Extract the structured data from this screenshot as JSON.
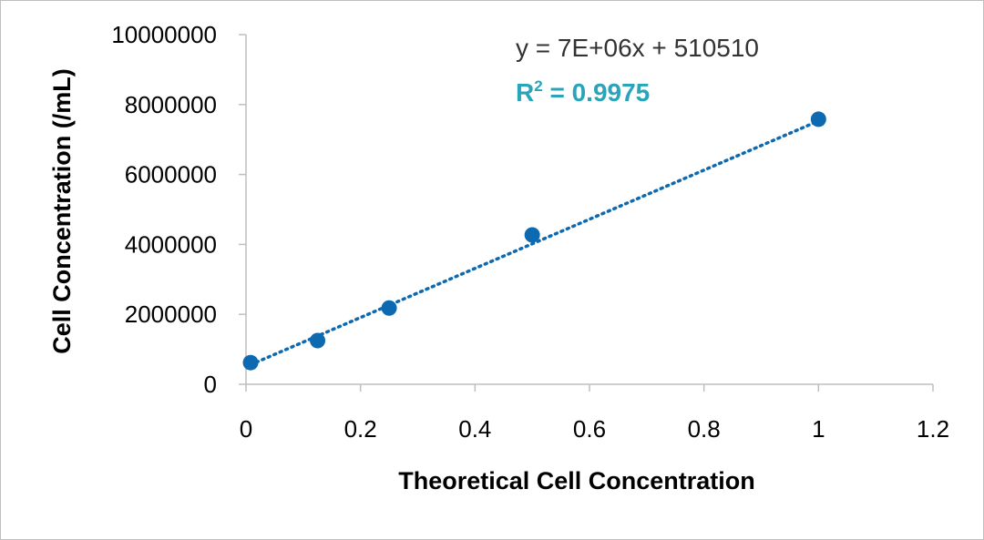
{
  "chart_data": {
    "type": "scatter",
    "xlabel": "Theoretical Cell Concentration",
    "ylabel": "Cell Concentration (/mL)",
    "xlim": [
      0,
      1.2
    ],
    "ylim": [
      0,
      10000000
    ],
    "x_ticks": [
      0,
      0.2,
      0.4,
      0.6,
      0.8,
      1,
      1.2
    ],
    "x_tick_labels": [
      "0",
      "0.2",
      "0.4",
      "0.6",
      "0.8",
      "1",
      "1.2"
    ],
    "y_ticks": [
      0,
      2000000,
      4000000,
      6000000,
      8000000,
      10000000
    ],
    "y_tick_labels": [
      "0",
      "2000000",
      "4000000",
      "6000000",
      "8000000",
      "10000000"
    ],
    "grid": false,
    "series": [
      {
        "x": [
          0.008,
          0.125,
          0.25,
          0.5,
          1.0
        ],
        "y": [
          620000,
          1250000,
          2180000,
          4270000,
          7580000
        ],
        "color": "#0e6ab0"
      }
    ],
    "trendline": {
      "type": "linear",
      "style": "dotted",
      "color": "#0e6ab0",
      "x_range": [
        0.008,
        1.0
      ],
      "y_range": [
        560000,
        7530000
      ],
      "equation": "y = 7E+06x + 510510",
      "r_squared_prefix": "R",
      "r_squared_sup": "2",
      "r_squared_value": " = 0.9975",
      "r_squared_color": "#2aa4b8"
    }
  }
}
